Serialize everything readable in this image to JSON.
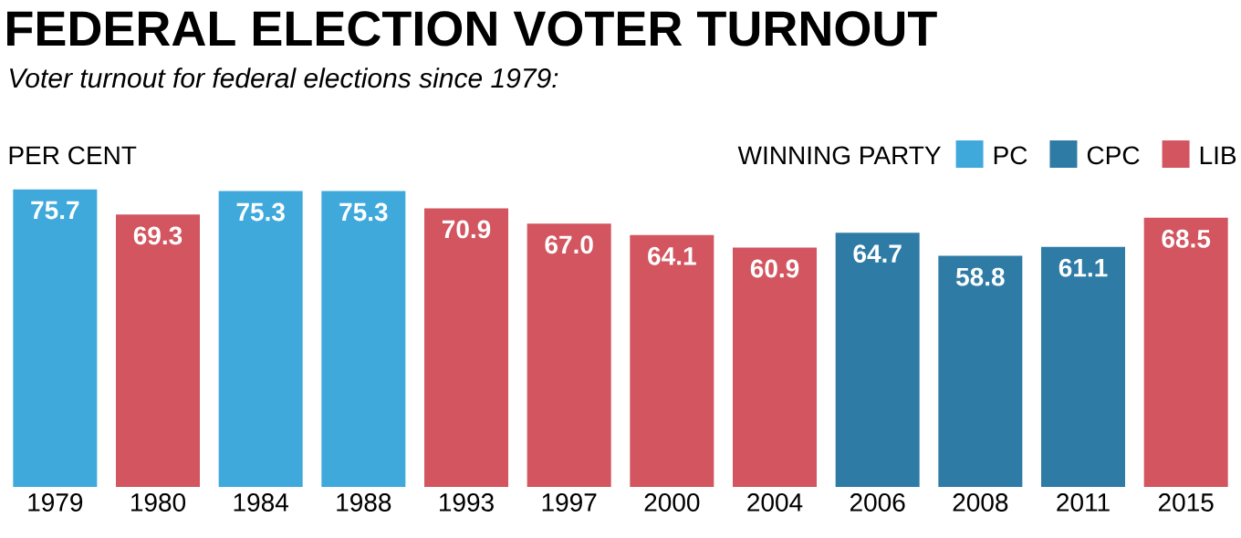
{
  "chart_data": {
    "type": "bar",
    "title": "FEDERAL ELECTION VOTER TURNOUT",
    "subtitle": "Voter turnout for federal elections since 1979:",
    "ylabel": "PER CENT",
    "legend_title": "WINNING PARTY",
    "legend": "top right",
    "stacked": true,
    "categories": [
      "1979",
      "1980",
      "1984",
      "1988",
      "1993",
      "1997",
      "2000",
      "2004",
      "2006",
      "2008",
      "2011",
      "2015"
    ],
    "series": [
      {
        "name": "PC",
        "color": "#3fa9dc",
        "values": [
          75.7,
          null,
          75.3,
          75.3,
          null,
          null,
          null,
          null,
          null,
          null,
          null,
          null
        ],
        "value_labels": [
          "75.7",
          null,
          "75.3",
          "75.3",
          null,
          null,
          null,
          null,
          null,
          null,
          null,
          null
        ]
      },
      {
        "name": "CPC",
        "color": "#2e7ba6",
        "values": [
          null,
          null,
          null,
          null,
          null,
          null,
          null,
          null,
          64.7,
          58.8,
          61.1,
          null
        ],
        "value_labels": [
          null,
          null,
          null,
          null,
          null,
          null,
          null,
          null,
          "64.7",
          "58.8",
          "61.1",
          null
        ]
      },
      {
        "name": "LIB",
        "color": "#d2555f",
        "values": [
          null,
          69.3,
          null,
          null,
          70.9,
          67.0,
          64.1,
          60.9,
          null,
          null,
          null,
          68.5
        ],
        "value_labels": [
          null,
          "69.3",
          null,
          null,
          "70.9",
          "67.0",
          "64.1",
          "60.9",
          null,
          null,
          null,
          "68.5"
        ]
      }
    ]
  }
}
